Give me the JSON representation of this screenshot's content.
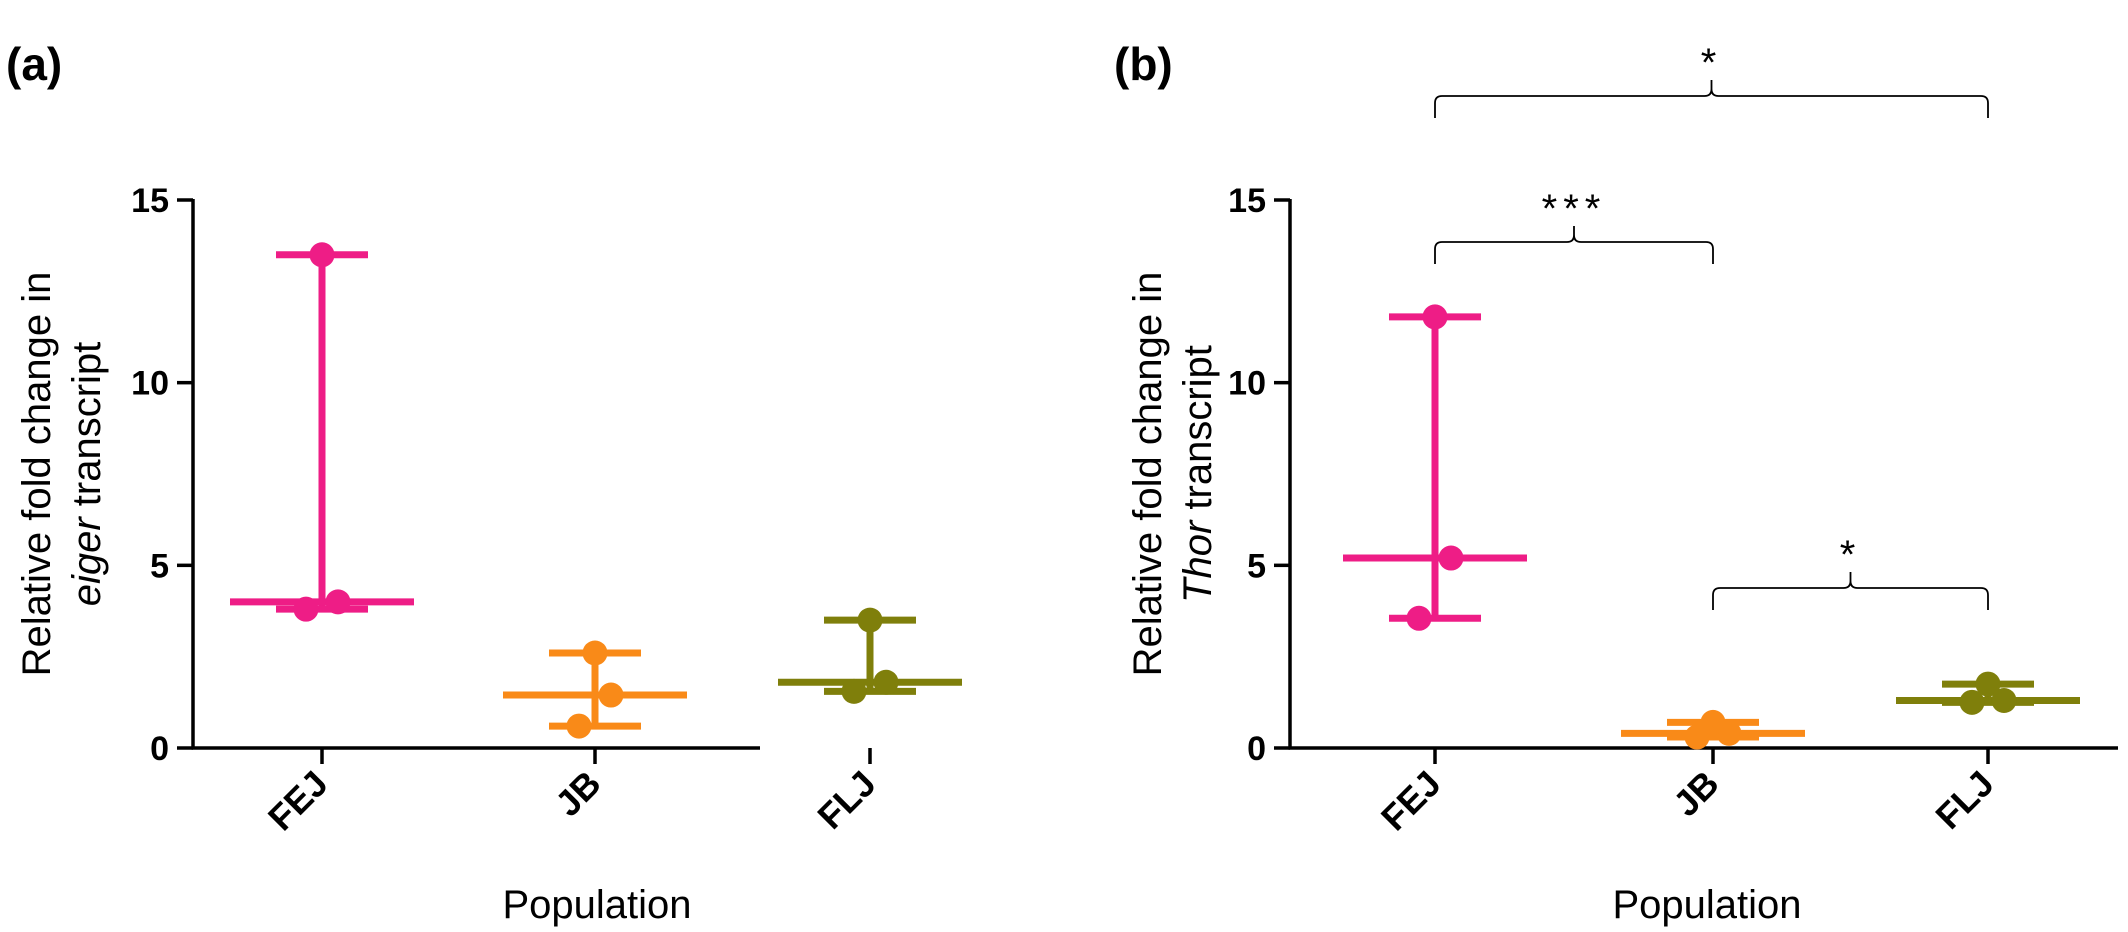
{
  "colors": {
    "FEJ": "#ee1d86",
    "JB": "#f98a18",
    "FLJ": "#7f7f0b",
    "axis": "#000000"
  },
  "chart_data": [
    {
      "type": "scatter",
      "panel_label": "(a)",
      "xlabel": "Population",
      "ylabel_prefix": "Relative fold change in",
      "ylabel_italic": "eiger",
      "ylabel_suffix": "transcript",
      "ylim": [
        0,
        15
      ],
      "yticks": [
        "0",
        "5",
        "10",
        "15"
      ],
      "categories": [
        "FEJ",
        "JB",
        "FLJ"
      ],
      "groups": [
        {
          "name": "FEJ",
          "points": [
            3.8,
            4.0,
            13.5
          ],
          "median": 4.0,
          "range": [
            3.8,
            13.5
          ]
        },
        {
          "name": "JB",
          "points": [
            0.6,
            1.45,
            2.6
          ],
          "median": 1.45,
          "range": [
            0.6,
            2.6
          ]
        },
        {
          "name": "FLJ",
          "points": [
            1.55,
            1.8,
            3.5
          ],
          "median": 1.8,
          "range": [
            1.55,
            3.5
          ]
        }
      ],
      "significance": []
    },
    {
      "type": "scatter",
      "panel_label": "(b)",
      "xlabel": "Population",
      "ylabel_prefix": "Relative fold change in",
      "ylabel_italic": "Thor",
      "ylabel_suffix": "transcript",
      "ylim": [
        0,
        15
      ],
      "yticks": [
        "0",
        "5",
        "10",
        "15"
      ],
      "categories": [
        "FEJ",
        "JB",
        "FLJ"
      ],
      "groups": [
        {
          "name": "FEJ",
          "points": [
            3.55,
            5.2,
            11.8
          ],
          "median": 5.2,
          "range": [
            3.55,
            11.8
          ]
        },
        {
          "name": "JB",
          "points": [
            0.3,
            0.4,
            0.7
          ],
          "median": 0.4,
          "range": [
            0.3,
            0.7
          ]
        },
        {
          "name": "FLJ",
          "points": [
            1.25,
            1.3,
            1.75
          ],
          "median": 1.3,
          "range": [
            1.25,
            1.75
          ]
        }
      ],
      "significance": [
        {
          "from": "FEJ",
          "to": "FLJ",
          "label": "*",
          "level": 2
        },
        {
          "from": "FEJ",
          "to": "JB",
          "label": "***",
          "level": 1
        },
        {
          "from": "JB",
          "to": "FLJ",
          "label": "*",
          "level": 0
        }
      ]
    }
  ]
}
